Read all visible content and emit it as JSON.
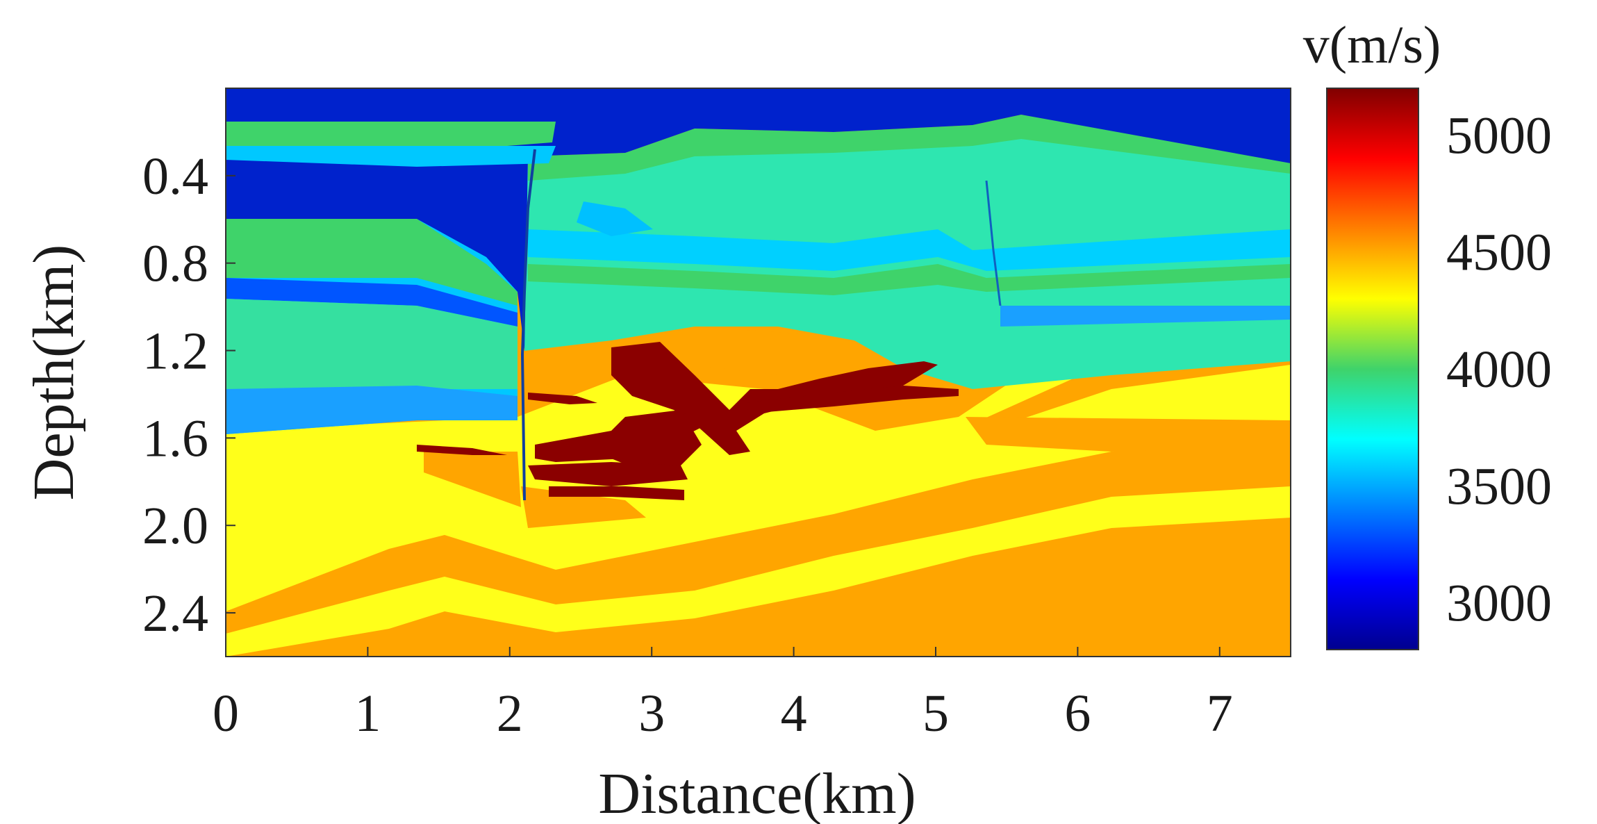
{
  "chart_data": {
    "type": "heatmap",
    "title": "",
    "xlabel": "Distance(km)",
    "ylabel": "Depth(km)",
    "xlim": [
      0,
      7.5
    ],
    "ylim": [
      0.0,
      2.6
    ],
    "y_inverted": true,
    "x_ticks": [
      "0",
      "1",
      "2",
      "3",
      "4",
      "5",
      "6",
      "7"
    ],
    "x_tick_values": [
      0,
      1,
      2,
      3,
      4,
      5,
      6,
      7
    ],
    "y_ticks": [
      "0.4",
      "0.8",
      "1.2",
      "1.6",
      "2.0",
      "2.4"
    ],
    "y_tick_values": [
      0.4,
      0.8,
      1.2,
      1.6,
      2.0,
      2.4
    ],
    "colorbar": {
      "label": "v(m/s)",
      "ticks": [
        "3000",
        "3500",
        "4000",
        "4500",
        "5000"
      ],
      "tick_values": [
        3000,
        3500,
        4000,
        4500,
        5000
      ],
      "range": [
        2800,
        5200
      ],
      "colormap": "jet"
    },
    "description_model": "velocity model",
    "layer_velocities": {
      "top_water": 3000,
      "shallow_band": 3950,
      "mid_section": 3850,
      "blue_band": 3450,
      "yellow_layer": 4300,
      "orange_layer": 4500,
      "salt_body": 5200
    }
  }
}
